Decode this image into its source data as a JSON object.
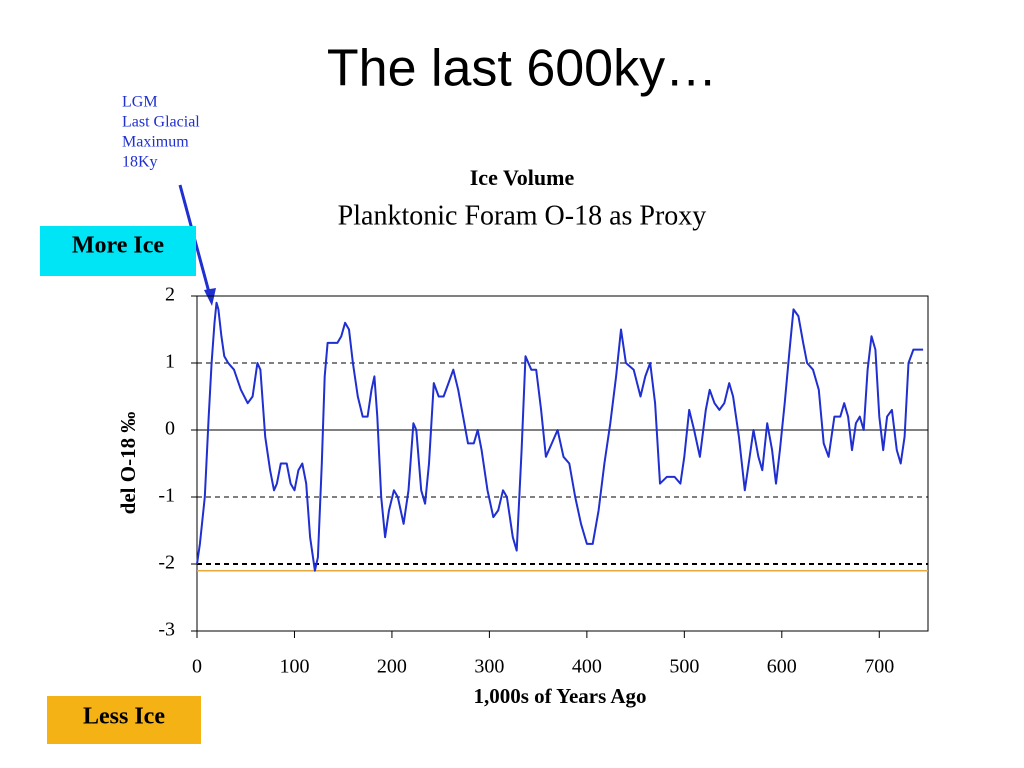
{
  "slide": {
    "title": "The last 600ky…",
    "annotation": [
      "LGM",
      "Last Glacial",
      "Maximum",
      "18Ky"
    ],
    "more_ice": "More Ice",
    "less_ice": "Less Ice"
  },
  "chart_data": {
    "type": "line",
    "title": "Ice Volume",
    "subtitle": "Planktonic Foram O-18 as Proxy",
    "x_label": "1,000s of Years Ago",
    "y_label": "del O-18 ‰",
    "color": "#1f2fd0",
    "xlim": [
      0,
      750
    ],
    "ylim": [
      -3,
      2
    ],
    "xticks": [
      0,
      100,
      200,
      300,
      400,
      500,
      600,
      700
    ],
    "yticks": [
      -3,
      -2,
      -1,
      0,
      1,
      2
    ],
    "dashed_lines": [
      1,
      -1,
      -2
    ],
    "zero_line": 0,
    "level_line": {
      "value": -2.1,
      "color": "#e8a93c"
    },
    "x": [
      0,
      3,
      8,
      12,
      15,
      18,
      20,
      22,
      25,
      28,
      32,
      38,
      45,
      52,
      57,
      62,
      65,
      70,
      75,
      79,
      82,
      86,
      92,
      96,
      100,
      104,
      108,
      112,
      116,
      121,
      124,
      128,
      131,
      134,
      138,
      144,
      148,
      152,
      156,
      160,
      165,
      170,
      175,
      179,
      182,
      185,
      189,
      193,
      197,
      202,
      206,
      212,
      217,
      222,
      225,
      230,
      234,
      238,
      243,
      248,
      253,
      258,
      263,
      268,
      273,
      278,
      284,
      288,
      292,
      298,
      304,
      309,
      314,
      318,
      324,
      328,
      333,
      337,
      343,
      348,
      353,
      358,
      364,
      370,
      376,
      382,
      388,
      394,
      400,
      406,
      412,
      418,
      424,
      430,
      435,
      440,
      448,
      455,
      460,
      465,
      470,
      475,
      482,
      490,
      496,
      500,
      505,
      510,
      516,
      522,
      526,
      531,
      536,
      541,
      546,
      550,
      556,
      562,
      566,
      571,
      576,
      580,
      585,
      590,
      594,
      598,
      603,
      608,
      612,
      617,
      622,
      626,
      632,
      638,
      643,
      648,
      654,
      660,
      664,
      668,
      672,
      676,
      680,
      684,
      688,
      692,
      696,
      700,
      704,
      708,
      713,
      718,
      722,
      726,
      730,
      735,
      740,
      745
    ],
    "values": [
      -2.0,
      -1.7,
      -1.0,
      0.2,
      1.0,
      1.6,
      1.9,
      1.8,
      1.4,
      1.1,
      1.0,
      0.9,
      0.6,
      0.4,
      0.5,
      1.0,
      0.9,
      -0.1,
      -0.6,
      -0.9,
      -0.8,
      -0.5,
      -0.5,
      -0.8,
      -0.9,
      -0.6,
      -0.5,
      -0.8,
      -1.6,
      -2.1,
      -1.9,
      -0.5,
      0.8,
      1.3,
      1.3,
      1.3,
      1.4,
      1.6,
      1.5,
      1.0,
      0.5,
      0.2,
      0.2,
      0.6,
      0.8,
      0.2,
      -1.0,
      -1.6,
      -1.2,
      -0.9,
      -1.0,
      -1.4,
      -0.9,
      0.1,
      0.0,
      -0.9,
      -1.1,
      -0.5,
      0.7,
      0.5,
      0.5,
      0.7,
      0.9,
      0.6,
      0.2,
      -0.2,
      -0.2,
      0.0,
      -0.3,
      -0.9,
      -1.3,
      -1.2,
      -0.9,
      -1.0,
      -1.6,
      -1.8,
      -0.3,
      1.1,
      0.9,
      0.9,
      0.3,
      -0.4,
      -0.2,
      0.0,
      -0.4,
      -0.5,
      -1.0,
      -1.4,
      -1.7,
      -1.7,
      -1.2,
      -0.5,
      0.1,
      0.8,
      1.5,
      1.0,
      0.9,
      0.5,
      0.8,
      1.0,
      0.4,
      -0.8,
      -0.7,
      -0.7,
      -0.8,
      -0.4,
      0.3,
      0.0,
      -0.4,
      0.3,
      0.6,
      0.4,
      0.3,
      0.4,
      0.7,
      0.5,
      -0.1,
      -0.9,
      -0.5,
      0.0,
      -0.4,
      -0.6,
      0.1,
      -0.3,
      -0.8,
      -0.3,
      0.4,
      1.2,
      1.8,
      1.7,
      1.3,
      1.0,
      0.9,
      0.6,
      -0.2,
      -0.4,
      0.2,
      0.2,
      0.4,
      0.2,
      -0.3,
      0.1,
      0.2,
      0.0,
      0.9,
      1.4,
      1.2,
      0.2,
      -0.3,
      0.2,
      0.3,
      -0.3,
      -0.5,
      -0.1,
      1.0,
      1.2,
      1.2,
      1.2
    ]
  }
}
